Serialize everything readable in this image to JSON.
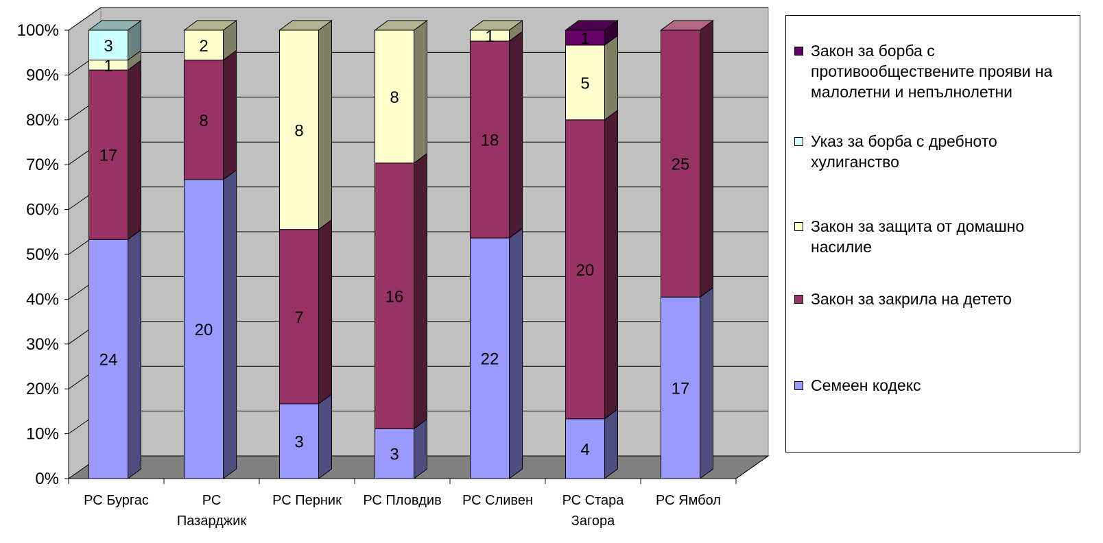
{
  "chart_data": {
    "type": "bar",
    "stacked": true,
    "percent_stacked": true,
    "three_d": true,
    "categories": [
      "РС Бургас",
      "РС Пазарджик",
      "РС Перник",
      "РС Пловдив",
      "РС Сливен",
      "РС Стара Загора",
      "РС Ямбол"
    ],
    "category_label_lines": [
      [
        "РС Бургас"
      ],
      [
        "РС",
        "Пазарджик"
      ],
      [
        "РС Перник"
      ],
      [
        "РС Пловдив"
      ],
      [
        "РС Сливен"
      ],
      [
        "РС Стара",
        "Загора"
      ],
      [
        "РС Ямбол"
      ]
    ],
    "series": [
      {
        "name": "Семеен  кодекс",
        "values": [
          24,
          20,
          3,
          3,
          22,
          4,
          17
        ],
        "color": "#9999FF",
        "side_color": "#4D4D80",
        "top_color": "#CCCCFF"
      },
      {
        "name": "Закон за закрила на детето",
        "values": [
          17,
          8,
          7,
          16,
          18,
          20,
          25
        ],
        "color": "#993366",
        "side_color": "#4D1A33",
        "top_color": "#B36685"
      },
      {
        "name": "Закон за  защита от домашно насилие",
        "values": [
          1,
          2,
          8,
          8,
          1,
          5,
          0
        ],
        "color": "#FFFFCC",
        "side_color": "#808066",
        "top_color": "#B3B38F"
      },
      {
        "name": "Указ за борба с дребното хулиганство",
        "values": [
          3,
          0,
          0,
          0,
          0,
          0,
          0
        ],
        "color": "#CCFFFF",
        "side_color": "#668080",
        "top_color": "#8FB3B3"
      },
      {
        "name": "Закон за борба с противообществените прояви на малолетни и непълнолетни",
        "values": [
          0,
          0,
          0,
          0,
          0,
          1,
          0
        ],
        "color": "#660066",
        "side_color": "#330033",
        "top_color": "#4D004D"
      }
    ],
    "y_ticks": [
      "0%",
      "10%",
      "20%",
      "30%",
      "40%",
      "50%",
      "60%",
      "70%",
      "80%",
      "90%",
      "100%"
    ],
    "ylim": [
      0,
      100
    ],
    "grid": true,
    "legend_position": "right",
    "colors": {
      "wall": "#C0C0C0",
      "floor": "#808080",
      "grid": "#000000",
      "text": "#000000"
    }
  },
  "legend": {
    "items": [
      {
        "label": "Закон за борба с противообществените прояви на малолетни и непълнолетни",
        "color": "#660066"
      },
      {
        "label": "Указ за борба с дребното хулиганство",
        "color": "#CCFFFF"
      },
      {
        "label": "Закон за  защита от домашно насилие",
        "color": "#FFFFCC"
      },
      {
        "label": "Закон за закрила на детето",
        "color": "#993366"
      },
      {
        "label": "Семеен  кодекс",
        "color": "#9999FF"
      }
    ]
  }
}
